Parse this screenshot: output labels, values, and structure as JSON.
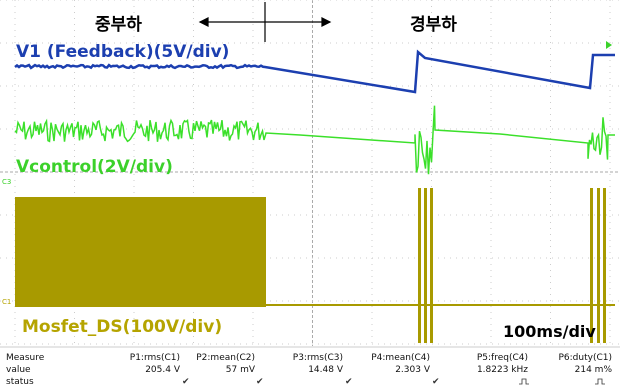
{
  "labels": {
    "heavy_load": "중부하",
    "light_load": "경부하",
    "ch_v1": "V1 (Feedback)(5V/div)",
    "ch_vcontrol": "Vcontrol(2V/div)",
    "ch_mosfet": "Mosfet_DS(100V/div)",
    "timebase": "100ms/div",
    "marker_c3": "C3",
    "marker_c1": "C1"
  },
  "measure_table": {
    "header": [
      "Measure",
      "P1:rms(C1)",
      "P2:mean(C2)",
      "P3:rms(C3)",
      "P4:mean(C4)",
      "P5:freq(C4)",
      "P6:duty(C1)"
    ],
    "value": [
      "value",
      "205.4 V",
      "57 mV",
      "14.48 V",
      "2.303 V",
      "1.8223 kHz",
      "214 m%"
    ],
    "status_label": "status"
  }
}
